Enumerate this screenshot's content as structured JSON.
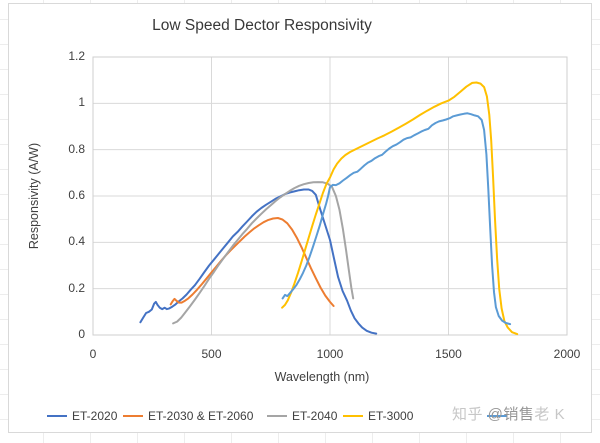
{
  "title": "Low Speed Dector Responsivity",
  "watermark": {
    "prefix": "知乎 ",
    "middle": "@销售",
    "suffix": "老 K"
  },
  "chart_data": {
    "type": "line",
    "title": "Low Speed Dector Responsivity",
    "xlabel": "Wavelength (nm)",
    "ylabel": "Responsivity (A/W)",
    "xlim": [
      0,
      2000
    ],
    "ylim": [
      0,
      1.2
    ],
    "x_ticks": [
      0,
      500,
      1000,
      1500,
      2000
    ],
    "x_tick_labels": [
      "0",
      "500",
      "1000",
      "1500",
      "2000"
    ],
    "y_ticks": [
      0,
      0.2,
      0.4,
      0.6,
      0.8,
      1,
      1.2
    ],
    "y_tick_labels": [
      "0",
      "0.2",
      "0.4",
      "0.6",
      "0.8",
      "1",
      "1.2"
    ],
    "grid": true,
    "legend_position": "bottom",
    "grid_color": "#d9d9d9",
    "series": [
      {
        "name": "ET-2020",
        "color": "#4472C4",
        "points": [
          [
            200,
            0.055
          ],
          [
            212,
            0.075
          ],
          [
            224,
            0.095
          ],
          [
            236,
            0.1
          ],
          [
            248,
            0.11
          ],
          [
            258,
            0.135
          ],
          [
            265,
            0.143
          ],
          [
            272,
            0.13
          ],
          [
            282,
            0.118
          ],
          [
            292,
            0.112
          ],
          [
            302,
            0.118
          ],
          [
            312,
            0.112
          ],
          [
            322,
            0.115
          ],
          [
            334,
            0.122
          ],
          [
            348,
            0.132
          ],
          [
            362,
            0.145
          ],
          [
            378,
            0.158
          ],
          [
            395,
            0.175
          ],
          [
            412,
            0.195
          ],
          [
            430,
            0.215
          ],
          [
            450,
            0.243
          ],
          [
            470,
            0.272
          ],
          [
            490,
            0.3
          ],
          [
            510,
            0.325
          ],
          [
            530,
            0.35
          ],
          [
            550,
            0.375
          ],
          [
            570,
            0.4
          ],
          [
            590,
            0.425
          ],
          [
            610,
            0.445
          ],
          [
            630,
            0.468
          ],
          [
            650,
            0.49
          ],
          [
            670,
            0.512
          ],
          [
            690,
            0.532
          ],
          [
            710,
            0.548
          ],
          [
            730,
            0.562
          ],
          [
            750,
            0.575
          ],
          [
            770,
            0.588
          ],
          [
            790,
            0.598
          ],
          [
            810,
            0.608
          ],
          [
            830,
            0.615
          ],
          [
            850,
            0.62
          ],
          [
            870,
            0.625
          ],
          [
            890,
            0.628
          ],
          [
            910,
            0.628
          ],
          [
            925,
            0.622
          ],
          [
            940,
            0.605
          ],
          [
            958,
            0.545
          ],
          [
            975,
            0.49
          ],
          [
            1000,
            0.41
          ],
          [
            1017,
            0.33
          ],
          [
            1034,
            0.25
          ],
          [
            1053,
            0.19
          ],
          [
            1072,
            0.148
          ],
          [
            1088,
            0.105
          ],
          [
            1104,
            0.072
          ],
          [
            1120,
            0.05
          ],
          [
            1136,
            0.032
          ],
          [
            1155,
            0.018
          ],
          [
            1175,
            0.01
          ],
          [
            1195,
            0.006
          ]
        ]
      },
      {
        "name": "ET-2030 & ET-2060",
        "color": "#ED7D31",
        "points": [
          [
            328,
            0.132
          ],
          [
            336,
            0.146
          ],
          [
            344,
            0.156
          ],
          [
            352,
            0.148
          ],
          [
            362,
            0.14
          ],
          [
            374,
            0.14
          ],
          [
            388,
            0.148
          ],
          [
            402,
            0.158
          ],
          [
            420,
            0.175
          ],
          [
            440,
            0.197
          ],
          [
            460,
            0.22
          ],
          [
            480,
            0.245
          ],
          [
            500,
            0.27
          ],
          [
            520,
            0.295
          ],
          [
            540,
            0.32
          ],
          [
            560,
            0.343
          ],
          [
            580,
            0.365
          ],
          [
            600,
            0.385
          ],
          [
            620,
            0.405
          ],
          [
            640,
            0.425
          ],
          [
            660,
            0.443
          ],
          [
            680,
            0.46
          ],
          [
            700,
            0.474
          ],
          [
            720,
            0.487
          ],
          [
            740,
            0.497
          ],
          [
            760,
            0.503
          ],
          [
            780,
            0.505
          ],
          [
            800,
            0.498
          ],
          [
            820,
            0.482
          ],
          [
            840,
            0.455
          ],
          [
            860,
            0.42
          ],
          [
            880,
            0.378
          ],
          [
            900,
            0.333
          ],
          [
            920,
            0.288
          ],
          [
            940,
            0.245
          ],
          [
            960,
            0.205
          ],
          [
            980,
            0.17
          ],
          [
            1000,
            0.143
          ],
          [
            1015,
            0.125
          ]
        ]
      },
      {
        "name": "ET-2040",
        "color": "#A5A5A5",
        "points": [
          [
            338,
            0.05
          ],
          [
            355,
            0.058
          ],
          [
            372,
            0.075
          ],
          [
            390,
            0.098
          ],
          [
            410,
            0.125
          ],
          [
            430,
            0.153
          ],
          [
            450,
            0.182
          ],
          [
            470,
            0.212
          ],
          [
            490,
            0.243
          ],
          [
            510,
            0.272
          ],
          [
            530,
            0.302
          ],
          [
            550,
            0.33
          ],
          [
            570,
            0.358
          ],
          [
            590,
            0.385
          ],
          [
            610,
            0.41
          ],
          [
            630,
            0.435
          ],
          [
            650,
            0.458
          ],
          [
            670,
            0.482
          ],
          [
            690,
            0.503
          ],
          [
            710,
            0.523
          ],
          [
            730,
            0.542
          ],
          [
            750,
            0.56
          ],
          [
            770,
            0.578
          ],
          [
            790,
            0.594
          ],
          [
            810,
            0.608
          ],
          [
            830,
            0.622
          ],
          [
            850,
            0.634
          ],
          [
            870,
            0.644
          ],
          [
            890,
            0.651
          ],
          [
            910,
            0.656
          ],
          [
            930,
            0.659
          ],
          [
            950,
            0.66
          ],
          [
            970,
            0.659
          ],
          [
            990,
            0.653
          ],
          [
            1008,
            0.64
          ],
          [
            1025,
            0.6
          ],
          [
            1040,
            0.54
          ],
          [
            1055,
            0.455
          ],
          [
            1068,
            0.365
          ],
          [
            1080,
            0.275
          ],
          [
            1090,
            0.205
          ],
          [
            1098,
            0.158
          ]
        ]
      },
      {
        "name": "ET-3000",
        "color": "#FFC000",
        "points": [
          [
            798,
            0.118
          ],
          [
            810,
            0.13
          ],
          [
            822,
            0.15
          ],
          [
            836,
            0.183
          ],
          [
            850,
            0.222
          ],
          [
            865,
            0.268
          ],
          [
            880,
            0.318
          ],
          [
            895,
            0.368
          ],
          [
            910,
            0.42
          ],
          [
            925,
            0.47
          ],
          [
            940,
            0.52
          ],
          [
            955,
            0.565
          ],
          [
            970,
            0.613
          ],
          [
            985,
            0.652
          ],
          [
            1000,
            0.68
          ],
          [
            1015,
            0.715
          ],
          [
            1030,
            0.74
          ],
          [
            1048,
            0.762
          ],
          [
            1065,
            0.777
          ],
          [
            1085,
            0.79
          ],
          [
            1110,
            0.803
          ],
          [
            1140,
            0.818
          ],
          [
            1170,
            0.833
          ],
          [
            1200,
            0.848
          ],
          [
            1230,
            0.862
          ],
          [
            1260,
            0.878
          ],
          [
            1290,
            0.895
          ],
          [
            1320,
            0.912
          ],
          [
            1350,
            0.93
          ],
          [
            1380,
            0.95
          ],
          [
            1410,
            0.968
          ],
          [
            1440,
            0.985
          ],
          [
            1470,
            1.0
          ],
          [
            1500,
            1.012
          ],
          [
            1525,
            1.028
          ],
          [
            1550,
            1.05
          ],
          [
            1575,
            1.072
          ],
          [
            1600,
            1.088
          ],
          [
            1618,
            1.09
          ],
          [
            1635,
            1.085
          ],
          [
            1650,
            1.07
          ],
          [
            1662,
            1.03
          ],
          [
            1672,
            0.95
          ],
          [
            1680,
            0.84
          ],
          [
            1688,
            0.68
          ],
          [
            1696,
            0.5
          ],
          [
            1705,
            0.33
          ],
          [
            1714,
            0.2
          ],
          [
            1724,
            0.115
          ],
          [
            1736,
            0.06
          ],
          [
            1750,
            0.032
          ],
          [
            1768,
            0.012
          ],
          [
            1790,
            0.004
          ]
        ]
      },
      {
        "name": "",
        "legend_label_obscured_by_watermark": true,
        "color": "#5B9BD5",
        "points": [
          [
            800,
            0.158
          ],
          [
            810,
            0.173
          ],
          [
            820,
            0.168
          ],
          [
            832,
            0.182
          ],
          [
            845,
            0.198
          ],
          [
            858,
            0.215
          ],
          [
            872,
            0.24
          ],
          [
            886,
            0.268
          ],
          [
            900,
            0.3
          ],
          [
            914,
            0.338
          ],
          [
            928,
            0.38
          ],
          [
            942,
            0.425
          ],
          [
            956,
            0.47
          ],
          [
            970,
            0.52
          ],
          [
            984,
            0.568
          ],
          [
            992,
            0.6
          ],
          [
            1000,
            0.638
          ],
          [
            1012,
            0.648
          ],
          [
            1025,
            0.647
          ],
          [
            1040,
            0.655
          ],
          [
            1055,
            0.667
          ],
          [
            1070,
            0.678
          ],
          [
            1085,
            0.69
          ],
          [
            1100,
            0.7
          ],
          [
            1115,
            0.705
          ],
          [
            1130,
            0.718
          ],
          [
            1145,
            0.732
          ],
          [
            1160,
            0.744
          ],
          [
            1175,
            0.752
          ],
          [
            1190,
            0.763
          ],
          [
            1205,
            0.772
          ],
          [
            1220,
            0.778
          ],
          [
            1235,
            0.792
          ],
          [
            1250,
            0.805
          ],
          [
            1265,
            0.815
          ],
          [
            1280,
            0.822
          ],
          [
            1295,
            0.832
          ],
          [
            1310,
            0.843
          ],
          [
            1325,
            0.85
          ],
          [
            1340,
            0.853
          ],
          [
            1355,
            0.862
          ],
          [
            1370,
            0.87
          ],
          [
            1385,
            0.878
          ],
          [
            1400,
            0.885
          ],
          [
            1415,
            0.89
          ],
          [
            1430,
            0.905
          ],
          [
            1445,
            0.915
          ],
          [
            1460,
            0.922
          ],
          [
            1475,
            0.926
          ],
          [
            1490,
            0.93
          ],
          [
            1505,
            0.936
          ],
          [
            1520,
            0.944
          ],
          [
            1535,
            0.948
          ],
          [
            1550,
            0.952
          ],
          [
            1565,
            0.955
          ],
          [
            1580,
            0.957
          ],
          [
            1595,
            0.953
          ],
          [
            1610,
            0.948
          ],
          [
            1625,
            0.944
          ],
          [
            1640,
            0.928
          ],
          [
            1650,
            0.885
          ],
          [
            1660,
            0.78
          ],
          [
            1668,
            0.63
          ],
          [
            1676,
            0.46
          ],
          [
            1684,
            0.3
          ],
          [
            1692,
            0.185
          ],
          [
            1700,
            0.12
          ],
          [
            1712,
            0.082
          ],
          [
            1726,
            0.062
          ],
          [
            1742,
            0.052
          ],
          [
            1760,
            0.047
          ]
        ]
      }
    ]
  }
}
